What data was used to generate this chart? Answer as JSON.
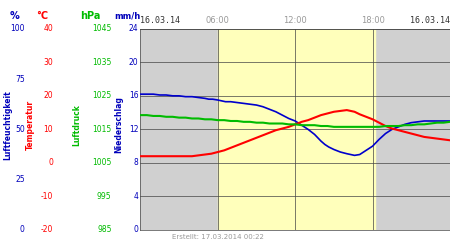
{
  "date_left": "16.03.14",
  "date_right": "16.03.14",
  "footer": "Erstellt: 17.03.2014 00:22",
  "x_ticks": [
    6,
    12,
    18
  ],
  "x_tick_labels": [
    "06:00",
    "12:00",
    "18:00"
  ],
  "x_min": 0,
  "x_max": 24,
  "y_min": 0,
  "y_max": 24,
  "y_ticks": [
    0,
    4,
    8,
    12,
    16,
    20,
    24
  ],
  "bg_gray": "#d0d0d0",
  "bg_yellow": "#ffffbb",
  "grid_color": "#444444",
  "line_blue_color": "#0000cc",
  "line_red_color": "#ff0000",
  "line_green_color": "#00bb00",
  "daytime_start": 6.0,
  "daytime_end": 18.2,
  "pct_ticks": [
    0,
    25,
    50,
    75,
    100
  ],
  "temp_ticks": [
    -20,
    -10,
    0,
    10,
    20,
    30,
    40
  ],
  "hpa_ticks": [
    985,
    995,
    1005,
    1015,
    1025,
    1035,
    1045
  ],
  "mm_ticks": [
    0,
    4,
    8,
    12,
    16,
    20,
    24
  ],
  "temp_min": -20,
  "temp_max": 40,
  "hpa_min": 985,
  "hpa_max": 1045,
  "blue_x": [
    0,
    0.3,
    0.6,
    1,
    1.5,
    2,
    2.5,
    3,
    3.5,
    4,
    4.5,
    5,
    5.3,
    5.6,
    6,
    6.3,
    6.6,
    7,
    7.5,
    8,
    8.5,
    9,
    9.5,
    10,
    10.5,
    11,
    11.5,
    12,
    12.2,
    12.5,
    13,
    13.5,
    14,
    14.3,
    14.6,
    15,
    15.5,
    16,
    16.3,
    16.6,
    17,
    17.3,
    17.6,
    18,
    18.5,
    19,
    19.5,
    20,
    20.5,
    21,
    21.5,
    22,
    22.5,
    23,
    23.5,
    24
  ],
  "blue_y": [
    16.2,
    16.2,
    16.2,
    16.2,
    16.1,
    16.1,
    16.0,
    16.0,
    15.9,
    15.9,
    15.8,
    15.7,
    15.6,
    15.6,
    15.5,
    15.4,
    15.3,
    15.3,
    15.2,
    15.1,
    15.0,
    14.9,
    14.7,
    14.4,
    14.1,
    13.7,
    13.3,
    13.0,
    12.8,
    12.5,
    12.0,
    11.4,
    10.6,
    10.2,
    9.9,
    9.6,
    9.3,
    9.1,
    9.0,
    8.9,
    9.0,
    9.3,
    9.6,
    10.0,
    10.8,
    11.5,
    12.0,
    12.3,
    12.6,
    12.8,
    12.9,
    13.0,
    13.0,
    13.0,
    13.0,
    13.0
  ],
  "red_x": [
    0,
    0.5,
    1,
    1.5,
    2,
    2.5,
    3,
    3.5,
    4,
    4.5,
    5,
    5.5,
    6,
    6.5,
    7,
    7.5,
    8,
    8.5,
    9,
    9.5,
    10,
    10.5,
    11,
    11.5,
    12,
    12.2,
    12.5,
    13,
    13.5,
    14,
    14.5,
    15,
    15.5,
    16,
    16.3,
    16.6,
    17,
    17.5,
    18,
    18.5,
    19,
    19.5,
    20,
    20.5,
    21,
    21.5,
    22,
    22.5,
    23,
    23.5,
    24
  ],
  "red_y": [
    8.8,
    8.8,
    8.8,
    8.8,
    8.8,
    8.8,
    8.8,
    8.8,
    8.8,
    8.9,
    9.0,
    9.1,
    9.3,
    9.5,
    9.8,
    10.1,
    10.4,
    10.7,
    11.0,
    11.3,
    11.6,
    11.9,
    12.1,
    12.3,
    12.6,
    12.7,
    12.9,
    13.1,
    13.4,
    13.7,
    13.9,
    14.1,
    14.2,
    14.3,
    14.2,
    14.1,
    13.8,
    13.5,
    13.2,
    12.8,
    12.4,
    12.1,
    11.9,
    11.7,
    11.5,
    11.3,
    11.1,
    11.0,
    10.9,
    10.8,
    10.7
  ],
  "green_x": [
    0,
    0.5,
    1,
    1.5,
    2,
    2.5,
    3,
    3.5,
    4,
    4.5,
    5,
    5.5,
    6,
    6.5,
    7,
    7.5,
    8,
    8.5,
    9,
    9.5,
    10,
    10.5,
    11,
    11.5,
    12,
    12.5,
    13,
    13.5,
    14,
    14.5,
    15,
    15.5,
    16,
    16.5,
    17,
    17.5,
    18,
    18.5,
    19,
    19.5,
    20,
    20.5,
    21,
    21.5,
    22,
    22.5,
    23,
    23.5,
    24
  ],
  "green_y": [
    13.7,
    13.7,
    13.6,
    13.6,
    13.5,
    13.5,
    13.4,
    13.4,
    13.3,
    13.3,
    13.2,
    13.2,
    13.1,
    13.1,
    13.0,
    13.0,
    12.9,
    12.9,
    12.8,
    12.8,
    12.7,
    12.7,
    12.7,
    12.6,
    12.6,
    12.5,
    12.5,
    12.5,
    12.4,
    12.4,
    12.3,
    12.3,
    12.3,
    12.3,
    12.3,
    12.3,
    12.3,
    12.3,
    12.4,
    12.4,
    12.4,
    12.5,
    12.5,
    12.6,
    12.6,
    12.7,
    12.8,
    12.8,
    12.9
  ]
}
